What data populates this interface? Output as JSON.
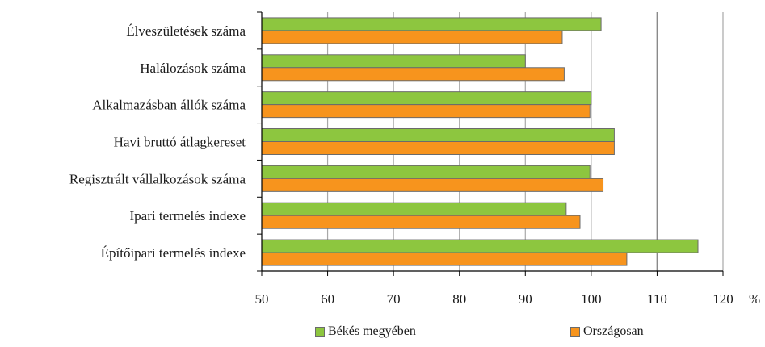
{
  "chart_data": {
    "type": "bar",
    "orientation": "horizontal",
    "categories": [
      "Élveszületések száma",
      "Halálozások száma",
      "Alkalmazásban állók száma",
      "Havi bruttó átlagkereset",
      "Regisztrált vállalkozások száma",
      "Ipari termelés indexe",
      "Építőipari termelés indexe"
    ],
    "series": [
      {
        "name": "Békés megyében",
        "color": "#8dc63f",
        "values": [
          101.5,
          90.0,
          100.0,
          103.5,
          99.8,
          96.2,
          116.2
        ]
      },
      {
        "name": "Országosan",
        "color": "#f7941d",
        "values": [
          95.6,
          95.9,
          99.8,
          103.5,
          101.8,
          98.3,
          105.4
        ]
      }
    ],
    "xlim": [
      50,
      120
    ],
    "xticks": [
      "50",
      "60",
      "70",
      "80",
      "90",
      "100",
      "110",
      "120"
    ],
    "x_unit": "%",
    "reference_line": 110,
    "grid": true,
    "legend_position": "bottom"
  }
}
